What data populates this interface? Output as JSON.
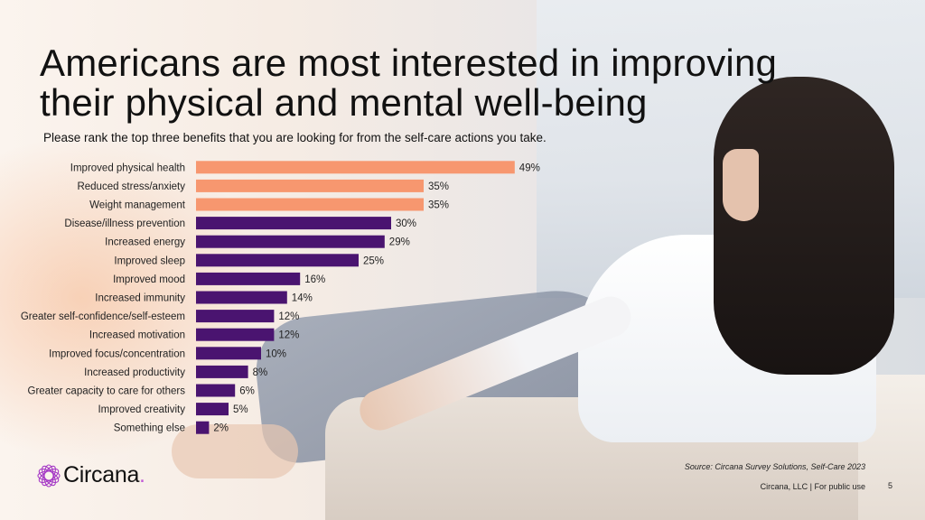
{
  "slide": {
    "title_line1": "Americans are most interested in improving",
    "title_line2": "their physical and mental well-being",
    "subtitle": "Please rank the top three benefits that you are looking for from the self-care actions you take.",
    "source": "Source: Circana Survey Solutions, Self-Care 2023",
    "footer": "Circana, LLC | For public use",
    "page_number": "5",
    "logo_text": "Circana",
    "logo_dot": "."
  },
  "colors": {
    "highlight": "#f7976f",
    "default": "#4a1470",
    "brand": "#c25ad6"
  },
  "chart_data": {
    "type": "bar",
    "orientation": "horizontal",
    "categories": [
      "Improved physical health",
      "Reduced stress/anxiety",
      "Weight management",
      "Disease/illness prevention",
      "Increased energy",
      "Improved sleep",
      "Improved mood",
      "Increased immunity",
      "Greater self-confidence/self-esteem",
      "Increased motivation",
      "Improved focus/concentration",
      "Increased productivity",
      "Greater capacity to care for others",
      "Improved creativity",
      "Something else"
    ],
    "values": [
      49,
      35,
      35,
      30,
      29,
      25,
      16,
      14,
      12,
      12,
      10,
      8,
      6,
      5,
      2
    ],
    "value_labels": [
      "49%",
      "35%",
      "35%",
      "30%",
      "29%",
      "25%",
      "16%",
      "14%",
      "12%",
      "12%",
      "10%",
      "8%",
      "6%",
      "5%",
      "2%"
    ],
    "highlighted": [
      true,
      true,
      true,
      false,
      false,
      false,
      false,
      false,
      false,
      false,
      false,
      false,
      false,
      false,
      false
    ],
    "xlim": [
      0,
      50
    ],
    "grid": false,
    "legend": "none"
  }
}
